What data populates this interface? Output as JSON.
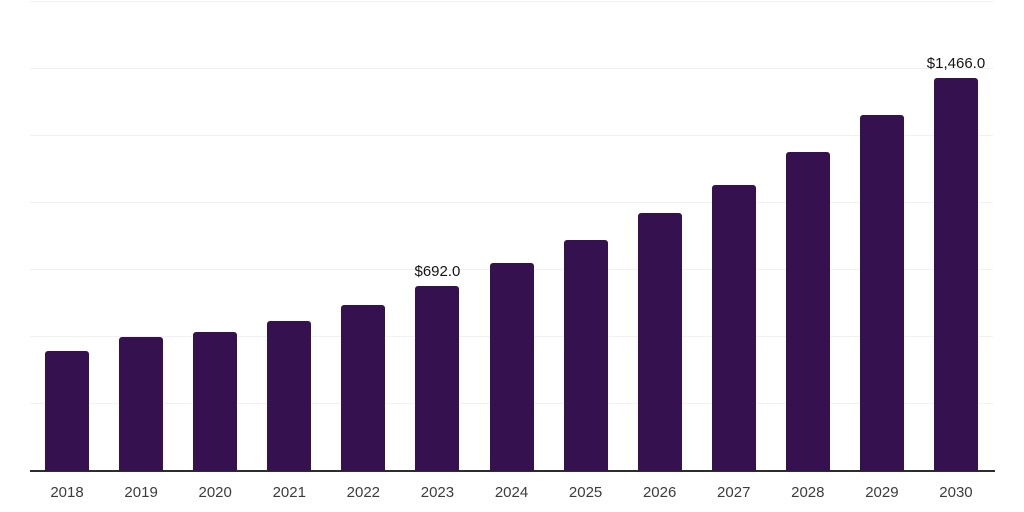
{
  "chart_data": {
    "type": "bar",
    "title": "",
    "xlabel": "",
    "ylabel": "",
    "categories": [
      "2018",
      "2019",
      "2020",
      "2021",
      "2022",
      "2023",
      "2024",
      "2025",
      "2026",
      "2027",
      "2028",
      "2029",
      "2030"
    ],
    "values": [
      448,
      500,
      519,
      560,
      620,
      692,
      776,
      862,
      962,
      1067,
      1190,
      1327,
      1466
    ],
    "data_labels": {
      "2023": "$692.0",
      "2030": "$1,466.0"
    },
    "ylim": [
      0,
      1750
    ],
    "gridline_step": 250,
    "grid": "horizontal",
    "legend_position": "none",
    "colors": {
      "bar": "#36114f",
      "axis_line": "#2d2d2d",
      "gridline": "#f1f1f3",
      "tick_label": "#3c3c3c",
      "data_label": "#141414",
      "background": "#ffffff"
    }
  }
}
